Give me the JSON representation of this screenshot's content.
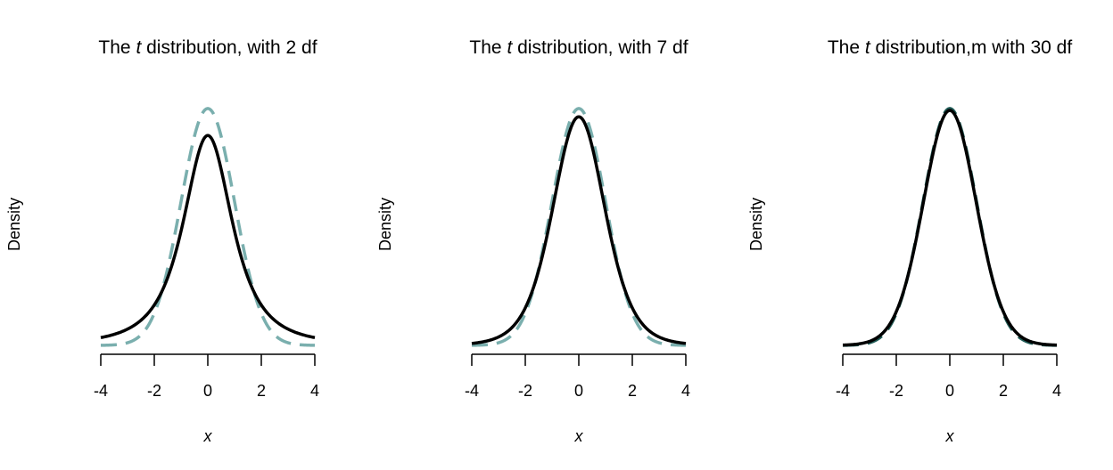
{
  "chart_data": [
    {
      "type": "line",
      "title": "The t distribution, with 2 df",
      "title_parts": [
        "The ",
        "t",
        " distribution, with 2 df"
      ],
      "xlabel": "x",
      "ylabel": "Density",
      "xlim": [
        -4,
        4
      ],
      "ylim": [
        0,
        0.4
      ],
      "xticks": [
        -4,
        -2,
        0,
        2,
        4
      ],
      "xtick_labels": [
        "-4",
        "-2",
        "0",
        "2",
        "4"
      ],
      "grid": false,
      "series": [
        {
          "df": 2,
          "dist": "t",
          "color": "#000000",
          "style": "solid"
        },
        {
          "dist": "normal",
          "color": "#7aafae",
          "style": "dashed"
        }
      ]
    },
    {
      "type": "line",
      "title": "The t distribution, with 7 df",
      "title_parts": [
        "The ",
        "t",
        " distribution, with 7 df"
      ],
      "xlabel": "x",
      "ylabel": "Density",
      "xlim": [
        -4,
        4
      ],
      "ylim": [
        0,
        0.4
      ],
      "xticks": [
        -4,
        -2,
        0,
        2,
        4
      ],
      "xtick_labels": [
        "-4",
        "-2",
        "0",
        "2",
        "4"
      ],
      "grid": false,
      "series": [
        {
          "df": 7,
          "dist": "t",
          "color": "#000000",
          "style": "solid"
        },
        {
          "dist": "normal",
          "color": "#7aafae",
          "style": "dashed"
        }
      ]
    },
    {
      "type": "line",
      "title": "The t distribution,m with 30 df",
      "title_parts": [
        "The ",
        "t",
        " distribution,m with 30 df"
      ],
      "xlabel": "x",
      "ylabel": "Density",
      "xlim": [
        -4,
        4
      ],
      "ylim": [
        0,
        0.4
      ],
      "xticks": [
        -4,
        -2,
        0,
        2,
        4
      ],
      "xtick_labels": [
        "-4",
        "-2",
        "0",
        "2",
        "4"
      ],
      "grid": false,
      "series": [
        {
          "df": 30,
          "dist": "t",
          "color": "#000000",
          "style": "solid"
        },
        {
          "dist": "normal",
          "color": "#1f5a55",
          "style": "dashed"
        }
      ]
    }
  ]
}
